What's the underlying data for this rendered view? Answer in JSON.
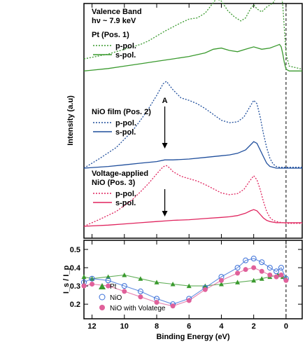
{
  "chart_data": [
    {
      "type": "line",
      "ylabel": "Intensity (a.u)",
      "xlim": [
        12.5,
        -1
      ],
      "x_reversed": true,
      "yticks": "none",
      "reference_line_x": 0,
      "header_line1": "Valence Band",
      "header_line2": "hν ~ 7.9 keV",
      "groups": [
        {
          "label": "Pt (Pos. 1)",
          "color": "#3a9a2e",
          "series": [
            {
              "name": "p-pol.",
              "style": "dotted",
              "x": [
                12.5,
                11,
                10,
                9,
                8.5,
                8,
                7.5,
                7,
                6.5,
                6,
                5.5,
                5,
                4.6,
                4.3,
                4,
                3.6,
                3.2,
                2.8,
                2.5,
                2.2,
                2,
                1.8,
                1.5,
                1.2,
                0.8,
                0.6,
                0.4,
                0.3,
                0.2,
                0.1,
                0,
                -0.2,
                -1
              ],
              "y": [
                0.22,
                0.3,
                0.38,
                0.46,
                0.52,
                0.6,
                0.68,
                0.75,
                0.82,
                0.88,
                0.9,
                0.98,
                1.12,
                1.22,
                1.18,
                1.02,
                0.92,
                0.85,
                0.9,
                1.05,
                1.12,
                1.05,
                1.0,
                1.08,
                1.15,
                1.25,
                1.35,
                1.32,
                1.1,
                0.7,
                0.3,
                0.1,
                0.05
              ]
            },
            {
              "name": "s-pol.",
              "style": "solid",
              "x": [
                12.5,
                11,
                10,
                9,
                8,
                7,
                6,
                5,
                4.5,
                4,
                3.5,
                3,
                2.5,
                2,
                1.5,
                1,
                0.6,
                0.4,
                0.3,
                0.2,
                0.1,
                0,
                -0.2,
                -1
              ],
              "y": [
                0.02,
                0.06,
                0.1,
                0.14,
                0.18,
                0.22,
                0.26,
                0.32,
                0.38,
                0.4,
                0.36,
                0.34,
                0.38,
                0.42,
                0.38,
                0.4,
                0.44,
                0.46,
                0.42,
                0.3,
                0.15,
                0.05,
                0.02,
                0.02
              ]
            }
          ]
        },
        {
          "label": "NiO film (Pos. 2)",
          "color": "#1f4e9c",
          "annotation": "A",
          "annotation_x": 7.5,
          "series": [
            {
              "name": "p-pol.",
              "style": "dotted",
              "x": [
                12.5,
                11.5,
                10.5,
                10,
                9.5,
                9,
                8.5,
                8,
                7.6,
                7.4,
                7.2,
                7,
                6.5,
                6,
                5.5,
                5,
                4.5,
                4,
                3.5,
                3,
                2.6,
                2.3,
                2,
                1.8,
                1.6,
                1.4,
                1.2,
                1,
                0.8,
                0.6,
                0.4,
                0.2,
                0,
                -0.5,
                -1
              ],
              "y": [
                0.0,
                0.12,
                0.25,
                0.35,
                0.45,
                0.58,
                0.72,
                0.88,
                1.02,
                1.05,
                1.0,
                0.95,
                0.85,
                0.82,
                0.78,
                0.72,
                0.65,
                0.58,
                0.55,
                0.56,
                0.62,
                0.72,
                0.82,
                0.78,
                0.62,
                0.42,
                0.25,
                0.12,
                0.05,
                0.02,
                0.01,
                0.01,
                0.01,
                0.01,
                0.01
              ]
            },
            {
              "name": "s-pol.",
              "style": "solid",
              "x": [
                12.5,
                11,
                10,
                9,
                8,
                7.5,
                7,
                6,
                5,
                4,
                3.5,
                3,
                2.5,
                2.2,
                2,
                1.8,
                1.6,
                1.4,
                1.2,
                1,
                0.8,
                0.6,
                0.4,
                0,
                -1
              ],
              "y": [
                0.0,
                0.02,
                0.04,
                0.06,
                0.08,
                0.1,
                0.1,
                0.11,
                0.13,
                0.15,
                0.16,
                0.18,
                0.22,
                0.28,
                0.32,
                0.3,
                0.22,
                0.14,
                0.06,
                0.02,
                0.01,
                0.0,
                0.0,
                0.0,
                0.0
              ]
            }
          ]
        },
        {
          "label_line1": "Voltage-applied",
          "label_line2": "NiO  (Pos. 3)",
          "color": "#e0245e",
          "series": [
            {
              "name": "p-pol.",
              "style": "dotted",
              "x": [
                12.5,
                11.5,
                10.5,
                10,
                9.5,
                9,
                8.5,
                8,
                7.6,
                7.4,
                7.2,
                7,
                6.5,
                6,
                5.5,
                5,
                4.5,
                4,
                3.5,
                3,
                2.6,
                2.3,
                2,
                1.8,
                1.6,
                1.4,
                1.2,
                1,
                0.8,
                0.6,
                0.4,
                0.2,
                0,
                -0.5,
                -1
              ],
              "y": [
                0.0,
                0.12,
                0.25,
                0.35,
                0.45,
                0.58,
                0.72,
                0.88,
                1.0,
                1.02,
                0.98,
                0.92,
                0.84,
                0.8,
                0.76,
                0.7,
                0.63,
                0.56,
                0.53,
                0.55,
                0.62,
                0.74,
                0.85,
                0.78,
                0.62,
                0.42,
                0.25,
                0.15,
                0.1,
                0.08,
                0.07,
                0.06,
                0.05,
                0.05,
                0.05
              ]
            },
            {
              "name": "s-pol.",
              "style": "solid",
              "x": [
                12.5,
                11,
                10,
                9,
                8,
                7.5,
                7,
                6,
                5,
                4,
                3.5,
                3,
                2.5,
                2.2,
                2,
                1.8,
                1.6,
                1.4,
                1.2,
                1,
                0.8,
                0.6,
                0.4,
                0,
                -1
              ],
              "y": [
                0.0,
                0.02,
                0.04,
                0.06,
                0.08,
                0.09,
                0.1,
                0.11,
                0.13,
                0.15,
                0.16,
                0.18,
                0.22,
                0.26,
                0.28,
                0.26,
                0.2,
                0.14,
                0.1,
                0.08,
                0.07,
                0.06,
                0.06,
                0.06,
                0.06
              ]
            }
          ]
        }
      ]
    },
    {
      "type": "scatter",
      "xlabel": "Binding Energy (eV)",
      "ylabel": "I_s / I_p",
      "xlim": [
        12.5,
        -1
      ],
      "x_reversed": true,
      "ylim": [
        0.12,
        0.55
      ],
      "xticks": [
        12,
        10,
        8,
        6,
        4,
        2,
        0
      ],
      "yticks": [
        0.2,
        0.3,
        0.4,
        0.5
      ],
      "reference_line_x": 0,
      "legend_position": "bottom-left",
      "series": [
        {
          "name": "Pt",
          "marker": "triangle",
          "color": "#3a9a2e",
          "x": [
            12.5,
            12,
            11,
            10,
            9,
            8,
            7,
            6,
            5,
            4,
            3,
            2,
            1.5,
            1,
            0.5,
            0.2,
            0
          ],
          "y": [
            0.35,
            0.34,
            0.35,
            0.36,
            0.34,
            0.32,
            0.31,
            0.3,
            0.3,
            0.31,
            0.32,
            0.33,
            0.34,
            0.35,
            0.36,
            0.35,
            0.34
          ]
        },
        {
          "name": "NiO",
          "marker": "open-circle",
          "color": "#3a6fd8",
          "x": [
            12.5,
            12,
            11,
            10,
            9,
            8,
            7,
            6,
            5,
            4,
            3,
            2.5,
            2,
            1.5,
            1,
            0.6,
            0.3,
            0
          ],
          "y": [
            0.32,
            0.34,
            0.33,
            0.3,
            0.27,
            0.23,
            0.2,
            0.23,
            0.29,
            0.35,
            0.4,
            0.44,
            0.45,
            0.43,
            0.4,
            0.38,
            0.4,
            0.34
          ]
        },
        {
          "name": "NiO with Volatege",
          "marker": "filled-circle",
          "color": "#e0609a",
          "x": [
            12.5,
            12,
            11,
            10,
            9,
            8,
            7,
            6,
            5,
            4,
            3,
            2.5,
            2,
            1.5,
            1,
            0.6,
            0.3,
            0
          ],
          "y": [
            0.3,
            0.31,
            0.3,
            0.27,
            0.24,
            0.21,
            0.19,
            0.22,
            0.28,
            0.33,
            0.37,
            0.39,
            0.4,
            0.38,
            0.36,
            0.35,
            0.36,
            0.33
          ]
        }
      ]
    }
  ]
}
